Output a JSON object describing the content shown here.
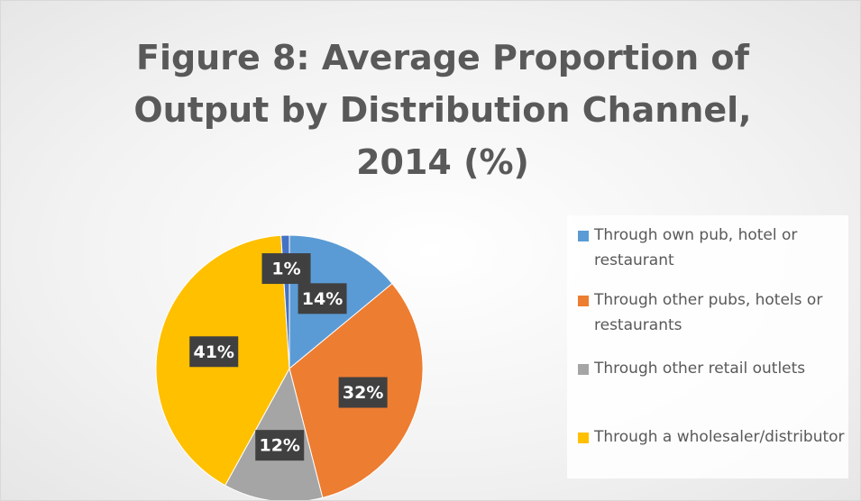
{
  "chart_data": {
    "type": "pie",
    "title": "Figure 8: Average Proportion of Output by Distribution Channel, 2014 (%)",
    "categories": [
      "Through own pub, hotel or restaurant",
      "Through other pubs, hotels or restaurants",
      "Through other retail outlets",
      "Through a wholesaler/distributor",
      null
    ],
    "values": [
      14,
      32,
      12,
      41,
      1
    ],
    "value_labels": [
      "14%",
      "32%",
      "12%",
      "41%",
      "1%"
    ],
    "colors": [
      "#5b9bd5",
      "#ed7d31",
      "#a5a5a5",
      "#ffc000",
      "#4472c4"
    ],
    "legend": "right"
  }
}
